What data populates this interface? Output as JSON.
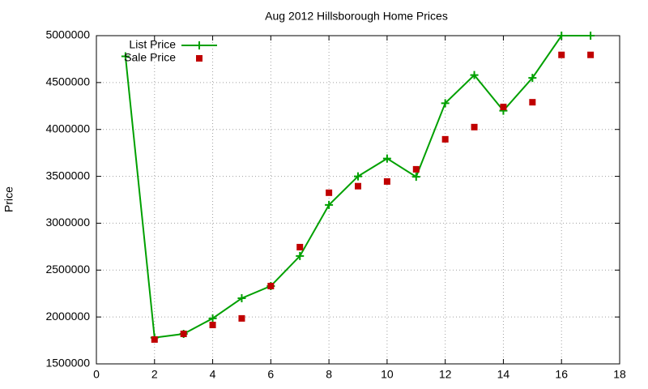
{
  "chart_data": {
    "type": "line",
    "title": "Aug 2012 Hillsborough Home Prices",
    "ylabel": "Price",
    "x": [
      1,
      2,
      3,
      4,
      5,
      6,
      7,
      8,
      9,
      10,
      11,
      12,
      13,
      14,
      15,
      16,
      17
    ],
    "series": [
      {
        "name": "List Price",
        "color": "#00a000",
        "style": "linespoints",
        "values": [
          4780000,
          1780000,
          1820000,
          1985000,
          2200000,
          2330000,
          2650000,
          3195000,
          3500000,
          3690000,
          3495000,
          4280000,
          4580000,
          4200000,
          4550000,
          5000000,
          5000000
        ]
      },
      {
        "name": "Sale Price",
        "color": "#c00000",
        "style": "points",
        "values": [
          null,
          1760000,
          1820000,
          1915000,
          1985000,
          2330000,
          2745000,
          3325000,
          3395000,
          3445000,
          3575000,
          3895000,
          4025000,
          4240000,
          4290000,
          4795000,
          4795000
        ]
      }
    ],
    "xlim": [
      0,
      18
    ],
    "xticks": [
      0,
      2,
      4,
      6,
      8,
      10,
      12,
      14,
      16,
      18
    ],
    "ylim": [
      1500000,
      5000000
    ],
    "yticks": [
      1500000,
      2000000,
      2500000,
      3000000,
      3500000,
      4000000,
      4500000,
      5000000
    ],
    "grid": true,
    "legend": "top-left"
  }
}
